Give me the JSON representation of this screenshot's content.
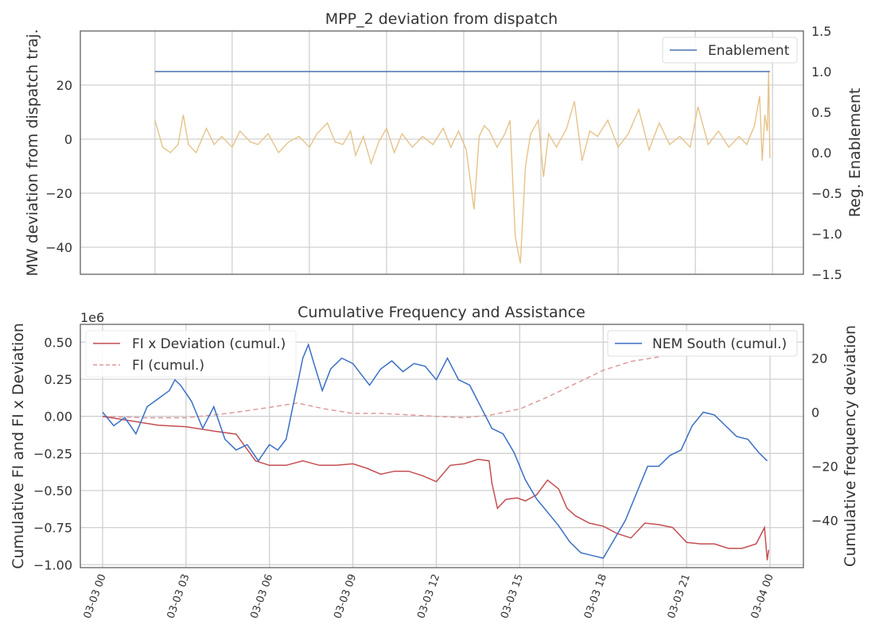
{
  "chart_data": [
    {
      "type": "line",
      "title": "MPP_2 deviation from dispatch",
      "ylabel": "MW deviation from dispatch traj.",
      "y2label": "Reg. Enablement",
      "ylim": [
        -50,
        40
      ],
      "y2lim": [
        -1.5,
        1.5
      ],
      "yticks": [
        -40,
        -20,
        0,
        20
      ],
      "yticklabels": [
        "−40",
        "−20",
        "0",
        "20"
      ],
      "y2ticks": [
        -1.5,
        -1.0,
        -0.5,
        0.0,
        0.5,
        1.0,
        1.5
      ],
      "y2ticklabels": [
        "−1.5",
        "−1.0",
        "−0.5",
        "0.0",
        "0.5",
        "1.0",
        "1.5"
      ],
      "x_domain_hours": [
        -2.9,
        25.2
      ],
      "grid": true,
      "legend_position": "top-right",
      "series": [
        {
          "name": "Enablement",
          "axis": "right",
          "color": "#4c72b0",
          "x_hours": [
            0,
            23.9
          ],
          "values": [
            1.0,
            1.0
          ]
        },
        {
          "axis": "left",
          "color": "#e6c38a",
          "x_hours": [
            0,
            0.3,
            0.6,
            0.9,
            1.1,
            1.3,
            1.6,
            2.0,
            2.3,
            2.6,
            3.0,
            3.3,
            3.7,
            4.0,
            4.4,
            4.8,
            5.2,
            5.6,
            6.0,
            6.3,
            6.7,
            7.0,
            7.3,
            7.6,
            7.8,
            8.1,
            8.4,
            8.7,
            9.0,
            9.3,
            9.6,
            10.0,
            10.4,
            10.8,
            11.2,
            11.5,
            11.8,
            12.1,
            12.4,
            12.6,
            12.8,
            13.0,
            13.3,
            13.6,
            13.8,
            14.0,
            14.2,
            14.4,
            14.6,
            14.9,
            15.1,
            15.3,
            15.6,
            16.0,
            16.3,
            16.6,
            16.9,
            17.2,
            17.6,
            18.0,
            18.4,
            18.8,
            19.2,
            19.6,
            20.0,
            20.4,
            20.8,
            21.1,
            21.5,
            21.9,
            22.3,
            22.7,
            23.0,
            23.3,
            23.5,
            23.6,
            23.7,
            23.8,
            23.85,
            23.9
          ],
          "values": [
            7,
            -3,
            -5,
            -2,
            9,
            -2,
            -5,
            4,
            -2,
            1,
            -3,
            3,
            -1,
            -2,
            2,
            -5,
            -1,
            1,
            -3,
            2,
            6,
            -1,
            -2,
            3,
            -6,
            1,
            -9,
            -1,
            4,
            -5,
            2,
            -3,
            1,
            -2,
            4,
            -3,
            3,
            -4,
            -26,
            1,
            5,
            3,
            -3,
            2,
            7,
            -36,
            -46,
            -10,
            2,
            7,
            -14,
            2,
            -3,
            4,
            14,
            -8,
            3,
            1,
            7,
            -3,
            2,
            11,
            -4,
            6,
            -2,
            1,
            -3,
            12,
            -2,
            3,
            -3,
            1,
            -2,
            5,
            16,
            -8,
            9,
            3,
            25,
            -7
          ]
        }
      ]
    },
    {
      "type": "line",
      "title": "Cumulative Frequency and Assistance",
      "ylabel": "Cumulative FI and FI x Deviation",
      "y2label": "Cumulative frequency deviation",
      "offset_text": "1e6",
      "ylim": [
        -1.02,
        0.62
      ],
      "y2lim": [
        -57.5,
        32.5
      ],
      "yticks": [
        -1.0,
        -0.75,
        -0.5,
        -0.25,
        0.0,
        0.25,
        0.5
      ],
      "yticklabels": [
        "−1.00",
        "−0.75",
        "−0.50",
        "−0.25",
        "0.00",
        "0.25",
        "0.50"
      ],
      "y2ticks": [
        -40,
        -20,
        0,
        20
      ],
      "y2ticklabels": [
        "−40",
        "−20",
        "0",
        "20"
      ],
      "xticks_hours": [
        0,
        3,
        6,
        9,
        12,
        15,
        18,
        21,
        24
      ],
      "xticklabels": [
        "03-03 00",
        "03-03 03",
        "03-03 06",
        "03-03 09",
        "03-03 12",
        "03-03 15",
        "03-03 18",
        "03-03 21",
        "03-04 00"
      ],
      "x_domain_hours": [
        -0.8,
        25.2
      ],
      "grid": true,
      "legend_positions": [
        "top-left",
        "top-right"
      ],
      "series": [
        {
          "name": "FI x Deviation (cumul.)",
          "axis": "left",
          "color": "#c44e52",
          "style": "solid",
          "x_hours": [
            0,
            1,
            2,
            3,
            4,
            4.8,
            5.5,
            6.0,
            6.6,
            7.2,
            7.8,
            8.4,
            9.0,
            9.5,
            10.0,
            10.5,
            11.0,
            11.5,
            12.0,
            12.5,
            13.0,
            13.5,
            13.9,
            14.0,
            14.2,
            14.5,
            14.9,
            15.2,
            15.6,
            16.0,
            16.4,
            16.7,
            17.0,
            17.5,
            18.0,
            18.5,
            19.0,
            19.5,
            20.0,
            20.5,
            21.0,
            21.5,
            22.0,
            22.5,
            23.0,
            23.5,
            23.8,
            23.9,
            23.95
          ],
          "values": [
            0.0,
            -0.03,
            -0.06,
            -0.07,
            -0.1,
            -0.12,
            -0.3,
            -0.33,
            -0.33,
            -0.3,
            -0.33,
            -0.33,
            -0.32,
            -0.35,
            -0.39,
            -0.37,
            -0.37,
            -0.4,
            -0.44,
            -0.33,
            -0.32,
            -0.29,
            -0.3,
            -0.45,
            -0.62,
            -0.56,
            -0.55,
            -0.57,
            -0.53,
            -0.43,
            -0.49,
            -0.62,
            -0.67,
            -0.72,
            -0.74,
            -0.79,
            -0.82,
            -0.72,
            -0.73,
            -0.75,
            -0.85,
            -0.86,
            -0.86,
            -0.89,
            -0.89,
            -0.86,
            -0.75,
            -0.97,
            -0.9
          ]
        },
        {
          "name": "FI (cumul.)",
          "axis": "left",
          "color": "#dd9a9c",
          "style": "dashed",
          "x_hours": [
            0,
            1.5,
            3,
            4.5,
            6,
            7,
            8,
            9,
            10,
            11,
            12,
            13,
            14,
            15,
            16,
            17,
            18,
            19,
            20
          ],
          "values": [
            0.0,
            -0.01,
            -0.01,
            0.02,
            0.06,
            0.09,
            0.05,
            0.02,
            0.02,
            0.01,
            0.0,
            -0.01,
            0.01,
            0.05,
            0.13,
            0.22,
            0.31,
            0.37,
            0.4
          ]
        },
        {
          "name": "NEM South (cumul.)",
          "axis": "right",
          "color": "#3a6fc4",
          "style": "solid",
          "x_hours": [
            0,
            0.4,
            0.8,
            1.2,
            1.6,
            2.0,
            2.4,
            2.6,
            2.8,
            3.2,
            3.6,
            4.0,
            4.4,
            4.8,
            5.2,
            5.6,
            6.0,
            6.3,
            6.6,
            6.9,
            7.2,
            7.4,
            7.6,
            7.9,
            8.2,
            8.6,
            9.0,
            9.3,
            9.6,
            10.0,
            10.4,
            10.8,
            11.2,
            11.6,
            12.0,
            12.4,
            12.8,
            13.2,
            13.6,
            14.0,
            14.4,
            14.8,
            15.2,
            15.6,
            16.0,
            16.4,
            16.8,
            17.2,
            17.6,
            18.0,
            18.4,
            18.8,
            19.2,
            19.6,
            20.0,
            20.4,
            20.8,
            21.2,
            21.6,
            22.0,
            22.4,
            22.8,
            23.2,
            23.6,
            23.9
          ],
          "values": [
            0,
            -5,
            -2,
            -8,
            2,
            5,
            8,
            12,
            10,
            4,
            -6,
            2,
            -10,
            -14,
            -12,
            -18,
            -12,
            -14,
            -10,
            5,
            20,
            25,
            18,
            8,
            16,
            20,
            18,
            14,
            10,
            16,
            19,
            15,
            18,
            17,
            12,
            20,
            12,
            10,
            2,
            -6,
            -8,
            -15,
            -25,
            -32,
            -37,
            -42,
            -48,
            -52,
            -53,
            -54,
            -47,
            -40,
            -30,
            -20,
            -20,
            -16,
            -14,
            -5,
            0,
            -1,
            -5,
            -9,
            -10,
            -15,
            -18
          ]
        }
      ]
    }
  ]
}
